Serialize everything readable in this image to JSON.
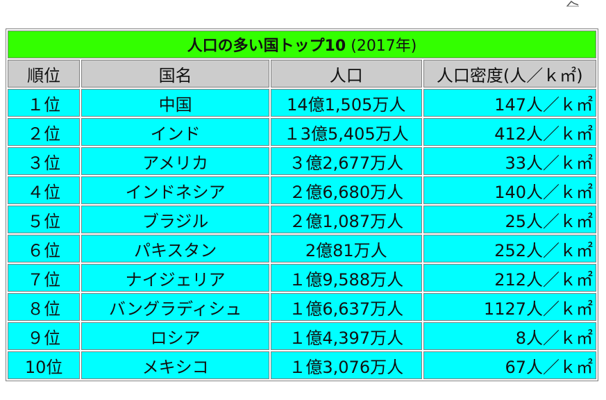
{
  "table": {
    "title_main": "人口の多い国トップ10",
    "title_year": "(2017年)",
    "headers": {
      "rank": "順位",
      "name": "国名",
      "population": "人口",
      "density": "人口密度(人／ｋ㎡)"
    },
    "rows": [
      {
        "rank": "１位",
        "name": "中国",
        "population": "14億1,505万人",
        "density": "147人／ｋ㎡"
      },
      {
        "rank": "２位",
        "name": "インド",
        "population": "１3億5,405万人",
        "density": "412人／ｋ㎡"
      },
      {
        "rank": "３位",
        "name": "アメリカ",
        "population": "３億2,677万人",
        "density": "33人／ｋ㎡"
      },
      {
        "rank": "４位",
        "name": "インドネシア",
        "population": "２億6,680万人",
        "density": "140人／ｋ㎡"
      },
      {
        "rank": "５位",
        "name": "ブラジル",
        "population": "２億1,087万人",
        "density": "25人／ｋ㎡"
      },
      {
        "rank": "６位",
        "name": "パキスタン",
        "population": "2億81万人",
        "density": "252人／ｋ㎡"
      },
      {
        "rank": "７位",
        "name": "ナイジェリア",
        "population": "１億9,588万人",
        "density": "212人／ｋ㎡"
      },
      {
        "rank": "８位",
        "name": "バングラディシュ",
        "population": "１億6,637万人",
        "density": "1127人／ｋ㎡"
      },
      {
        "rank": "９位",
        "name": "ロシア",
        "population": "１億4,397万人",
        "density": "8人／ｋ㎡"
      },
      {
        "rank": "10位",
        "name": "メキシコ",
        "population": "１億3,076万人",
        "density": "67人／ｋ㎡"
      }
    ]
  },
  "colors": {
    "title_bg": "#33ff00",
    "header_bg": "#cccccc",
    "row_bg": "#00ffff"
  },
  "icons": {
    "corner": "pen-icon"
  }
}
